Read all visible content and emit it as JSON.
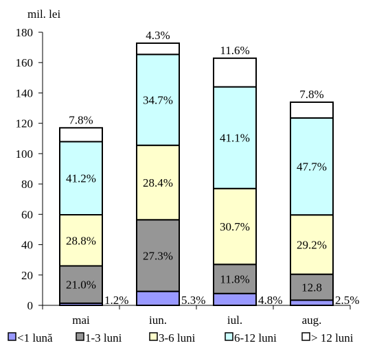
{
  "chart_data": {
    "type": "bar",
    "stacked": true,
    "title": "",
    "ylabel": "mil. lei",
    "xlabel": "",
    "ylim": [
      0,
      180
    ],
    "yticks": [
      0,
      20,
      40,
      60,
      80,
      100,
      120,
      140,
      160,
      180
    ],
    "categories": [
      "mai",
      "iun.",
      "iul.",
      "aug."
    ],
    "series": [
      {
        "name": "<1 lună",
        "color": "#9999ff",
        "values": [
          1.4,
          9.2,
          7.8,
          3.4
        ],
        "labels": [
          "1.2%",
          "5.3%",
          "4.8%",
          "2.5%"
        ]
      },
      {
        "name": "1-3 luni",
        "color": "#969696",
        "values": [
          24.6,
          47.2,
          19.2,
          17.1
        ],
        "labels": [
          "21.0%",
          "27.3%",
          "11.8%",
          "12.8"
        ]
      },
      {
        "name": "3-6 luni",
        "color": "#ffffcc",
        "values": [
          33.7,
          49.1,
          50.0,
          39.1
        ],
        "labels": [
          "28.8%",
          "28.4%",
          "30.7%",
          "29.2%"
        ]
      },
      {
        "name": "6-12 luni",
        "color": "#ccffff",
        "values": [
          48.2,
          59.9,
          67.0,
          63.9
        ],
        "labels": [
          "41.2%",
          "34.7%",
          "41.1%",
          "47.7%"
        ]
      },
      {
        "name": "> 12 luni",
        "color": "#ffffff",
        "values": [
          9.1,
          7.4,
          18.9,
          10.4
        ],
        "labels": [
          "7.8%",
          "4.3%",
          "11.6%",
          "7.8%"
        ]
      }
    ],
    "grid": false,
    "legend": "bottom"
  }
}
